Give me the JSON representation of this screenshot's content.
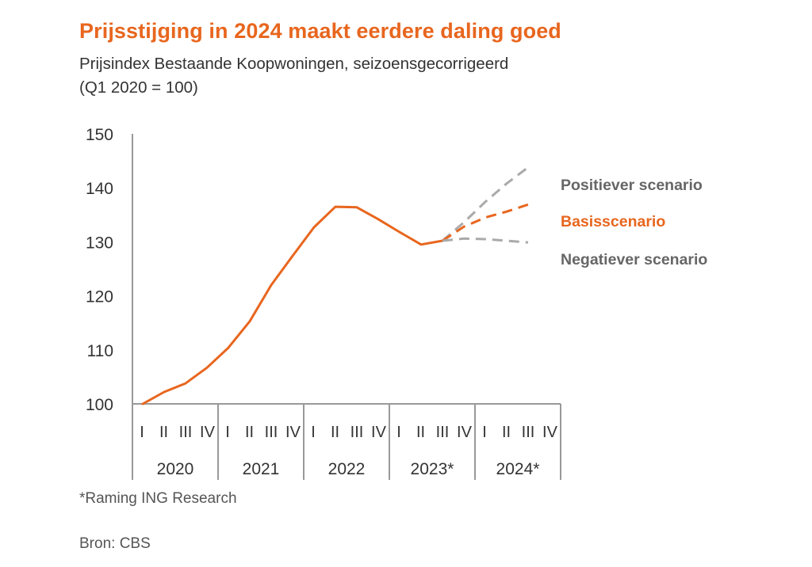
{
  "title": "Prijsstijging in 2024 maakt eerdere daling goed",
  "subtitle_line1": "Prijsindex Bestaande Koopwoningen, seizoensgecorrigeerd",
  "subtitle_line2": "(Q1 2020 = 100)",
  "footnote": "*Raming ING Research",
  "source": "Bron: CBS",
  "colors": {
    "orange": "#e8661e",
    "gray": "#aaaaaa",
    "axis": "#999999",
    "label_gray": "#666666"
  },
  "chart_data": {
    "type": "line",
    "ylim": [
      100,
      150
    ],
    "yticks": [
      100,
      110,
      120,
      130,
      140,
      150
    ],
    "quarter_labels": [
      "I",
      "II",
      "III",
      "IV"
    ],
    "years": [
      "2020",
      "2021",
      "2022",
      "2023*",
      "2024*"
    ],
    "series": [
      {
        "name": "",
        "style": "solid",
        "color": "#e8661e",
        "values": [
          100,
          102.2,
          103.8,
          106.7,
          110.4,
          115.3,
          122,
          127.4,
          132.7,
          136.5,
          136.4,
          134.2,
          131.8,
          129.5,
          130.2
        ]
      },
      {
        "name": "Positiever scenario",
        "style": "dashed",
        "color": "#aaaaaa",
        "start_index": 14,
        "values": [
          130.2,
          133.6,
          137.4,
          140.8,
          143.8
        ]
      },
      {
        "name": "Basisscenario",
        "style": "dashed",
        "color": "#e8661e",
        "start_index": 14,
        "values": [
          130.2,
          132.8,
          134.5,
          135.6,
          136.9
        ]
      },
      {
        "name": "Negatiever scenario",
        "style": "dashed",
        "color": "#aaaaaa",
        "start_index": 14,
        "values": [
          130.2,
          130.6,
          130.5,
          130.2,
          129.9
        ]
      }
    ]
  }
}
